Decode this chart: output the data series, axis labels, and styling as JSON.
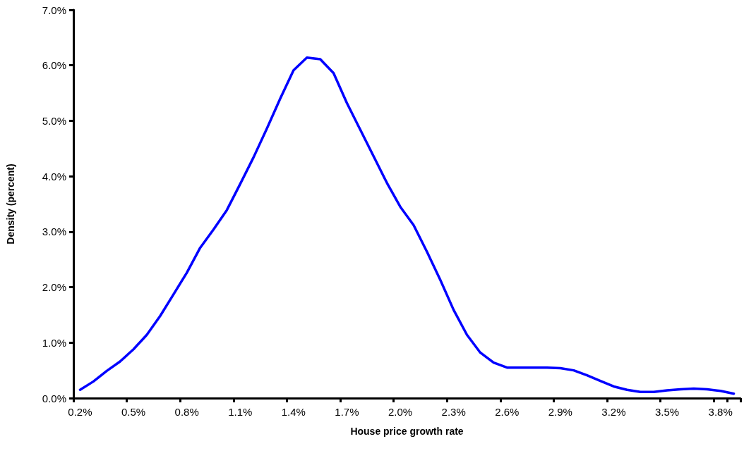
{
  "chart_data": {
    "type": "line",
    "xlabel": "House price growth rate",
    "ylabel": "Density (percent)",
    "categories": [
      "0.2%",
      null,
      null,
      null,
      "0.5%",
      null,
      null,
      null,
      "0.8%",
      null,
      null,
      null,
      "1.1%",
      null,
      null,
      null,
      "1.4%",
      null,
      null,
      null,
      "1.7%",
      null,
      null,
      null,
      "2.0%",
      null,
      null,
      null,
      "2.3%",
      null,
      null,
      null,
      "2.6%",
      null,
      null,
      null,
      "2.9%",
      null,
      null,
      null,
      "3.2%",
      null,
      null,
      null,
      "3.5%",
      null,
      null,
      null,
      "3.8%",
      null
    ],
    "series": [
      {
        "color": "#0000ff",
        "values": [
          0.15,
          0.3,
          0.49,
          0.66,
          0.88,
          1.14,
          1.48,
          1.87,
          2.26,
          2.71,
          3.04,
          3.39,
          3.86,
          4.34,
          4.86,
          5.4,
          5.91,
          6.14,
          6.11,
          5.86,
          5.32,
          4.84,
          4.36,
          3.88,
          3.45,
          3.12,
          2.64,
          2.13,
          1.59,
          1.14,
          0.82,
          0.64,
          0.55,
          0.55,
          0.55,
          0.55,
          0.54,
          0.5,
          0.41,
          0.31,
          0.21,
          0.15,
          0.11,
          0.11,
          0.14,
          0.16,
          0.17,
          0.16,
          0.13,
          0.08
        ]
      }
    ],
    "ylim": [
      0,
      7
    ],
    "yticks": [
      {
        "value": 0,
        "label": "0.0%"
      },
      {
        "value": 1,
        "label": "1.0%"
      },
      {
        "value": 2,
        "label": "2.0%"
      },
      {
        "value": 3,
        "label": "3.0%"
      },
      {
        "value": 4,
        "label": "4.0%"
      },
      {
        "value": 5,
        "label": "5.0%"
      },
      {
        "value": 6,
        "label": "6.0%"
      },
      {
        "value": 7,
        "label": "7.0%"
      }
    ],
    "grid": false,
    "marker": "none",
    "line_style": "solid"
  }
}
